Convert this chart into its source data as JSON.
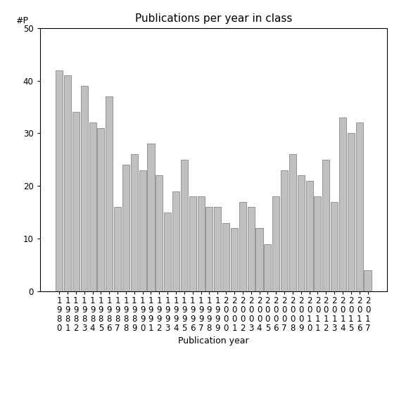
{
  "title": "Publications per year in class",
  "xlabel": "Publication year",
  "ylabel": "#P",
  "years": [
    1980,
    1981,
    1982,
    1983,
    1984,
    1985,
    1986,
    1987,
    1988,
    1989,
    1990,
    1991,
    1992,
    1993,
    1994,
    1995,
    1996,
    1997,
    1998,
    1999,
    2000,
    2001,
    2002,
    2003,
    2004,
    2005,
    2006,
    2007,
    2008,
    2009,
    2010,
    2011,
    2012,
    2013,
    2014,
    2015,
    2016,
    2017
  ],
  "values": [
    42,
    41,
    34,
    39,
    32,
    31,
    37,
    16,
    24,
    26,
    23,
    28,
    22,
    15,
    19,
    25,
    18,
    18,
    16,
    16,
    13,
    12,
    17,
    16,
    12,
    9,
    18,
    23,
    26,
    22,
    21,
    18,
    25,
    17,
    33,
    30,
    32,
    4
  ],
  "bar_color": "#c0c0c0",
  "bar_edgecolor": "#888888",
  "ylim": [
    0,
    50
  ],
  "yticks": [
    0,
    10,
    20,
    30,
    40,
    50
  ],
  "background_color": "#ffffff",
  "title_fontsize": 11,
  "axis_label_fontsize": 9,
  "tick_fontsize": 8.5
}
